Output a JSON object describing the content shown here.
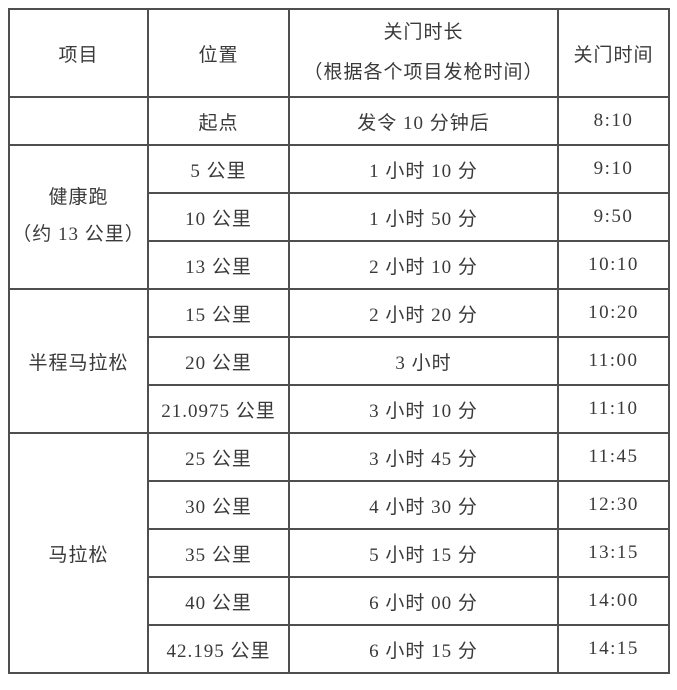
{
  "colors": {
    "border": "#4f4f4f",
    "text": "#3a3a3a",
    "background": "#ffffff"
  },
  "header": {
    "project": "项目",
    "location": "位置",
    "duration_line1": "关门时长",
    "duration_line2": "（根据各个项目发枪时间）",
    "close_time": "关门时间"
  },
  "groups": [
    {
      "project": "",
      "rows": [
        {
          "location": "起点",
          "duration": "发令 10 分钟后",
          "time": "8:10"
        }
      ]
    },
    {
      "project_line1": "健康跑",
      "project_line2": "（约 13 公里）",
      "rows": [
        {
          "location": "5 公里",
          "duration": "1 小时 10 分",
          "time": "9:10"
        },
        {
          "location": "10 公里",
          "duration": "1 小时 50 分",
          "time": "9:50"
        },
        {
          "location": "13 公里",
          "duration": "2 小时 10 分",
          "time": "10:10"
        }
      ]
    },
    {
      "project": "半程马拉松",
      "rows": [
        {
          "location": "15 公里",
          "duration": "2 小时 20 分",
          "time": "10:20"
        },
        {
          "location": "20 公里",
          "duration": "3 小时",
          "time": "11:00"
        },
        {
          "location": "21.0975 公里",
          "duration": "3 小时 10 分",
          "time": "11:10"
        }
      ]
    },
    {
      "project": "马拉松",
      "rows": [
        {
          "location": "25 公里",
          "duration": "3 小时 45 分",
          "time": "11:45"
        },
        {
          "location": "30 公里",
          "duration": "4 小时 30 分",
          "time": "12:30"
        },
        {
          "location": "35 公里",
          "duration": "5 小时 15 分",
          "time": "13:15"
        },
        {
          "location": "40 公里",
          "duration": "6 小时 00 分",
          "time": "14:00"
        },
        {
          "location": "42.195 公里",
          "duration": "6 小时 15 分",
          "time": "14:15"
        }
      ]
    }
  ]
}
